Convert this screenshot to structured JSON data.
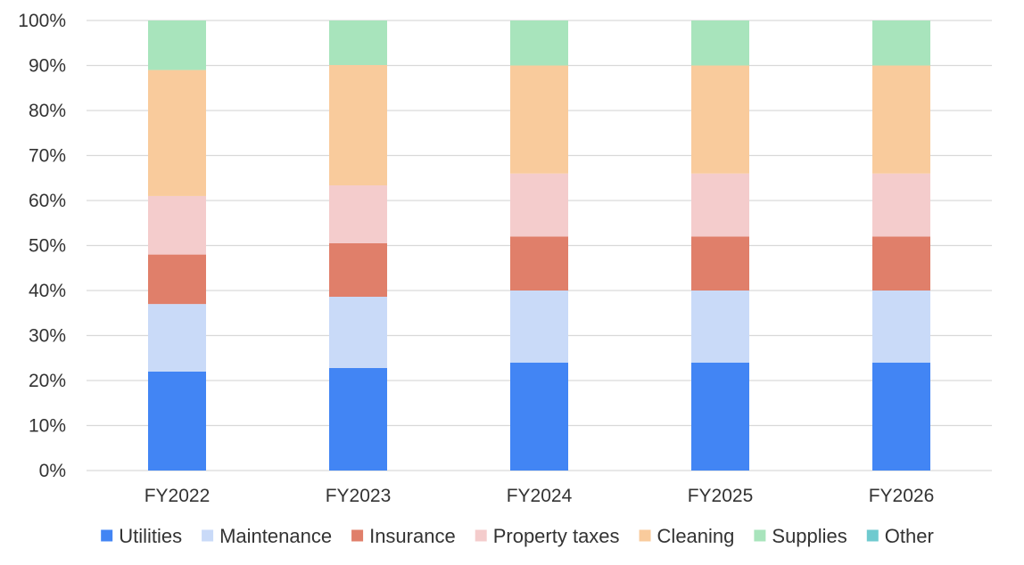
{
  "chart_data": {
    "type": "bar",
    "stacked": true,
    "percent_stacked": true,
    "title": "",
    "xlabel": "",
    "ylabel": "",
    "categories": [
      "FY2022",
      "FY2023",
      "FY2024",
      "FY2025",
      "FY2026"
    ],
    "ylim": [
      0,
      100
    ],
    "y_ticks": [
      "0%",
      "10%",
      "20%",
      "30%",
      "40%",
      "50%",
      "60%",
      "70%",
      "80%",
      "90%",
      "100%"
    ],
    "grid": true,
    "legend_position": "bottom",
    "series": [
      {
        "name": "Utilities",
        "color": "#4285F4",
        "values": [
          22,
          23,
          24,
          24,
          24
        ]
      },
      {
        "name": "Maintenance",
        "color": "#C9DAF8",
        "values": [
          15,
          16,
          16,
          16,
          16
        ]
      },
      {
        "name": "Insurance",
        "color": "#E07F6A",
        "values": [
          11,
          12,
          12,
          12,
          12
        ]
      },
      {
        "name": "Property taxes",
        "color": "#F4CCCC",
        "values": [
          13,
          13,
          14,
          14,
          14
        ]
      },
      {
        "name": "Cleaning",
        "color": "#F9CB9C",
        "values": [
          28,
          27,
          24,
          24,
          24
        ]
      },
      {
        "name": "Supplies",
        "color": "#A8E4BC",
        "values": [
          11,
          10,
          10,
          10,
          10
        ]
      },
      {
        "name": "Other",
        "color": "#6FCACF",
        "values": [
          0,
          0,
          0,
          0,
          0
        ]
      }
    ]
  }
}
